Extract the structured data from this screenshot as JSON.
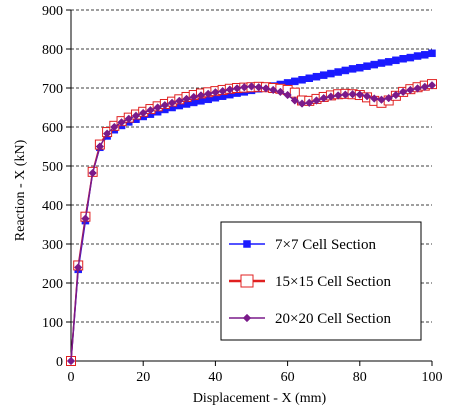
{
  "chart_data": {
    "type": "line",
    "xlabel": "Displacement - X (mm)",
    "ylabel": "Reaction - X (kN)",
    "xlim": [
      0,
      100
    ],
    "ylim": [
      0,
      900
    ],
    "x_ticks": [
      "0",
      "20",
      "40",
      "60",
      "80",
      "100"
    ],
    "y_ticks": [
      "0",
      "100",
      "200",
      "300",
      "400",
      "500",
      "600",
      "700",
      "800",
      "900"
    ],
    "grid": "horizontal dashed",
    "legend_placement": "bottom-right",
    "series": [
      {
        "name": "7×7  Cell Section",
        "color": "#1a1aff",
        "marker": "filled-square",
        "x": [
          0,
          2,
          4,
          6,
          8,
          10,
          12,
          14,
          16,
          18,
          20,
          22,
          24,
          26,
          28,
          30,
          32,
          34,
          36,
          38,
          40,
          42,
          44,
          46,
          48,
          50,
          52,
          54,
          56,
          58,
          60,
          62,
          64,
          66,
          68,
          70,
          72,
          74,
          76,
          78,
          80,
          82,
          84,
          86,
          88,
          90,
          92,
          94,
          96,
          98,
          100
        ],
        "y": [
          0,
          235,
          360,
          485,
          548,
          577,
          593,
          604,
          613,
          620,
          627,
          633,
          639,
          645,
          650,
          655,
          659,
          663,
          667,
          671,
          675,
          679,
          683,
          687,
          690,
          694,
          698,
          701,
          705,
          709,
          713,
          717,
          721,
          725,
          729,
          733,
          737,
          741,
          745,
          749,
          752,
          756,
          760,
          764,
          767,
          771,
          775,
          778,
          782,
          785,
          789
        ]
      },
      {
        "name": "15×15  Cell Section",
        "color": "#e02020",
        "marker": "open-square",
        "x": [
          0,
          2,
          4,
          6,
          8,
          10,
          12,
          14,
          16,
          18,
          20,
          22,
          24,
          26,
          28,
          30,
          32,
          34,
          36,
          38,
          40,
          42,
          44,
          46,
          48,
          50,
          52,
          54,
          56,
          58,
          60,
          62,
          64,
          66,
          68,
          70,
          72,
          74,
          76,
          78,
          80,
          82,
          84,
          86,
          88,
          90,
          92,
          94,
          96,
          98,
          100
        ],
        "y": [
          0,
          245,
          370,
          485,
          555,
          587,
          603,
          615,
          624,
          632,
          639,
          646,
          653,
          659,
          665,
          671,
          677,
          682,
          686,
          689,
          692,
          695,
          698,
          700,
          701,
          702,
          703,
          702,
          700,
          698,
          695,
          688,
          668,
          667,
          672,
          677,
          681,
          684,
          685,
          684,
          682,
          676,
          667,
          662,
          668,
          680,
          690,
          697,
          702,
          706,
          710
        ]
      },
      {
        "name": "20×20  Cell Section",
        "color": "#7a1a8a",
        "marker": "filled-diamond",
        "x": [
          0,
          2,
          4,
          6,
          8,
          10,
          12,
          14,
          16,
          18,
          20,
          22,
          24,
          26,
          28,
          30,
          32,
          34,
          36,
          38,
          40,
          42,
          44,
          46,
          48,
          50,
          52,
          54,
          56,
          58,
          60,
          62,
          64,
          66,
          68,
          70,
          72,
          74,
          76,
          78,
          80,
          82,
          84,
          86,
          88,
          90,
          92,
          94,
          96,
          98,
          100
        ],
        "y": [
          0,
          240,
          365,
          482,
          550,
          583,
          600,
          612,
          621,
          629,
          636,
          643,
          650,
          656,
          662,
          667,
          672,
          677,
          681,
          685,
          689,
          692,
          696,
          699,
          702,
          704,
          702,
          699,
          695,
          690,
          682,
          668,
          660,
          662,
          668,
          674,
          678,
          681,
          683,
          684,
          683,
          679,
          673,
          670,
          674,
          682,
          690,
          695,
          699,
          703,
          707
        ]
      }
    ]
  }
}
